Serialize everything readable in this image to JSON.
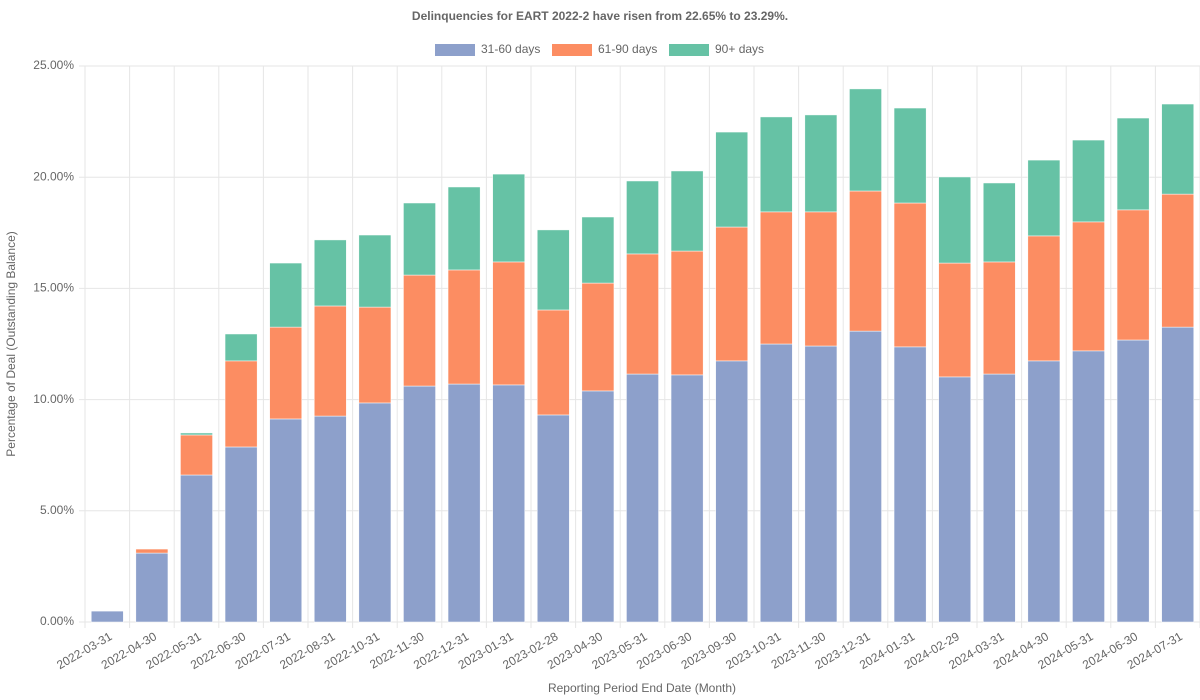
{
  "chart_data": {
    "type": "stacked-bar",
    "title": "Delinquencies for EART 2022-2 have risen from 22.65% to 23.29%.",
    "x_label": "Reporting Period End Date (Month)",
    "y_label": "Percentage of Deal (Outstanding Balance)",
    "categories": [
      "2022-03-31",
      "2022-04-30",
      "2022-05-31",
      "2022-06-30",
      "2022-07-31",
      "2022-08-31",
      "2022-10-31",
      "2022-11-30",
      "2022-12-31",
      "2023-01-31",
      "2023-02-28",
      "2023-04-30",
      "2023-05-31",
      "2023-06-30",
      "2023-09-30",
      "2023-10-31",
      "2023-11-30",
      "2023-12-31",
      "2024-01-31",
      "2024-02-29",
      "2024-03-31",
      "2024-04-30",
      "2024-05-31",
      "2024-06-30",
      "2024-07-31"
    ],
    "series": [
      {
        "name": "31-60 days",
        "color": "#8da0cb",
        "values": [
          0.49,
          3.1,
          6.61,
          7.87,
          9.13,
          9.26,
          9.85,
          10.61,
          10.7,
          10.66,
          9.31,
          10.39,
          11.15,
          11.11,
          11.74,
          12.5,
          12.41,
          13.08,
          12.37,
          11.02,
          11.15,
          11.74,
          12.19,
          12.68,
          13.26
        ]
      },
      {
        "name": "61-90 days",
        "color": "#fc8d62",
        "values": [
          0,
          0.18,
          1.8,
          3.87,
          4.13,
          4.95,
          4.31,
          4.99,
          5.13,
          5.53,
          4.72,
          4.85,
          5.4,
          5.57,
          6.02,
          5.94,
          6.03,
          6.3,
          6.47,
          5.12,
          5.04,
          5.62,
          5.8,
          5.85,
          5.98
        ]
      },
      {
        "name": "90+ days",
        "color": "#66c2a5",
        "values": [
          0,
          0,
          0.09,
          1.21,
          2.88,
          2.97,
          3.24,
          3.24,
          3.73,
          3.95,
          3.6,
          2.97,
          3.28,
          3.6,
          4.27,
          4.27,
          4.36,
          4.59,
          4.27,
          3.87,
          3.55,
          3.41,
          3.68,
          4.13,
          4.05
        ]
      }
    ],
    "ylim": [
      0,
      25
    ],
    "yticks": [
      {
        "value": 0,
        "label": "0.00%"
      },
      {
        "value": 5,
        "label": "5.00%"
      },
      {
        "value": 10,
        "label": "10.00%"
      },
      {
        "value": 15,
        "label": "15.00%"
      },
      {
        "value": 20,
        "label": "20.00%"
      },
      {
        "value": 25,
        "label": "25.00%"
      }
    ],
    "grid": true
  }
}
